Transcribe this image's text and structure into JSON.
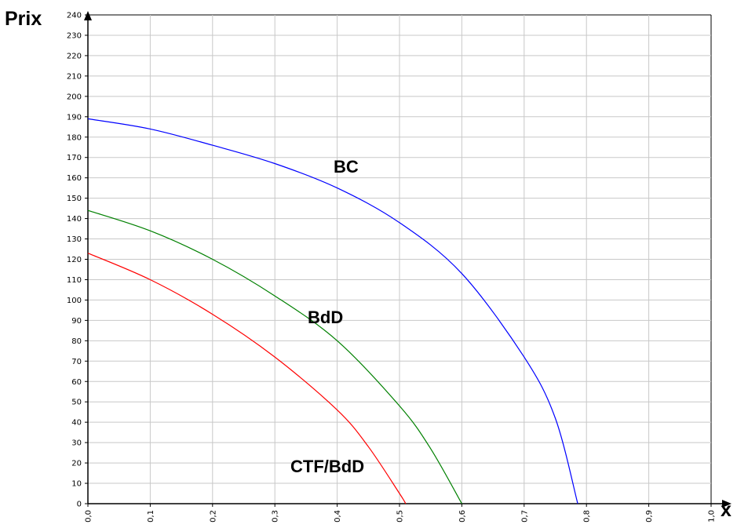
{
  "chart_data": {
    "type": "line",
    "xlabel": "x",
    "ylabel": "Prix",
    "xlim": [
      0,
      1.0
    ],
    "ylim": [
      0,
      240
    ],
    "grid": true,
    "x_ticks": [
      "0,0",
      "0,1",
      "0,2",
      "0,3",
      "0,4",
      "0,5",
      "0,6",
      "0,7",
      "0,8",
      "0,9",
      "1,0"
    ],
    "y_ticks": [
      "0",
      "10",
      "20",
      "30",
      "40",
      "50",
      "60",
      "70",
      "80",
      "90",
      "100",
      "110",
      "120",
      "130",
      "140",
      "150",
      "160",
      "170",
      "180",
      "190",
      "200",
      "210",
      "220",
      "230",
      "240"
    ],
    "series": [
      {
        "name": "BC",
        "color": "#0000ff",
        "x": [
          0.0,
          0.1,
          0.2,
          0.3,
          0.4,
          0.5,
          0.6,
          0.7,
          0.75,
          0.786
        ],
        "y": [
          189,
          184,
          176,
          167,
          155,
          138,
          113,
          72,
          42,
          0
        ]
      },
      {
        "name": "BdD",
        "color": "#008000",
        "x": [
          0.0,
          0.1,
          0.2,
          0.3,
          0.4,
          0.5,
          0.55,
          0.6
        ],
        "y": [
          144,
          134,
          120,
          102,
          80,
          48,
          27,
          0
        ]
      },
      {
        "name": "CTF/BdD",
        "color": "#ff0000",
        "x": [
          0.0,
          0.1,
          0.2,
          0.3,
          0.4,
          0.45,
          0.5,
          0.51
        ],
        "y": [
          123,
          110,
          93,
          72,
          46,
          28,
          5,
          0
        ]
      }
    ]
  }
}
